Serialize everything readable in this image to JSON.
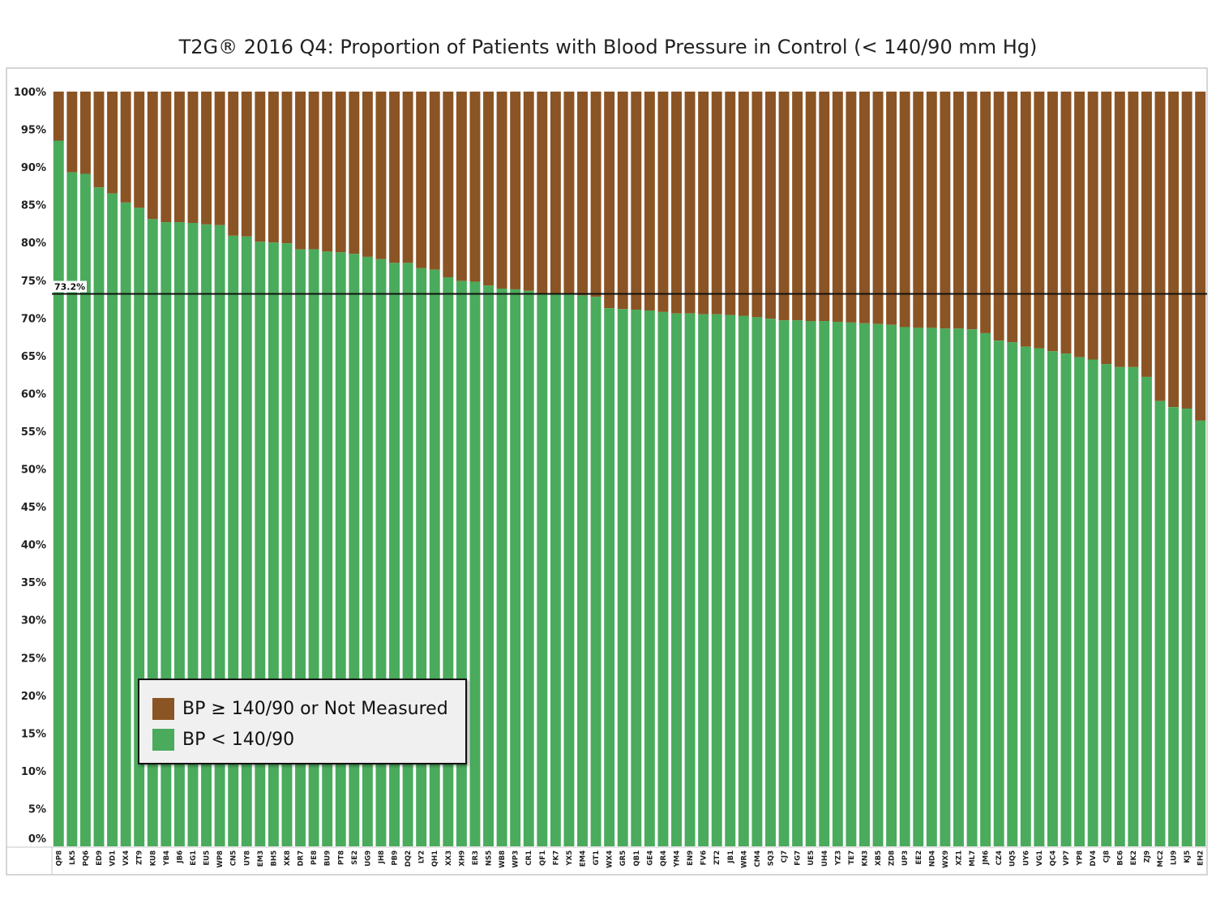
{
  "chart_data": {
    "type": "bar",
    "stacked": true,
    "title": "T2G® 2016 Q4: Proportion of Patients with Blood Pressure in Control (< 140/90 mm Hg)",
    "ylim": [
      0,
      100
    ],
    "y_ticks": [
      "0%",
      "5%",
      "10%",
      "15%",
      "20%",
      "25%",
      "30%",
      "35%",
      "40%",
      "45%",
      "50%",
      "55%",
      "60%",
      "65%",
      "70%",
      "75%",
      "80%",
      "85%",
      "90%",
      "95%",
      "100%"
    ],
    "grid": false,
    "reference_line": {
      "value": 73.2,
      "label": "73.2%"
    },
    "categories": [
      "QP8",
      "LK5",
      "PQ6",
      "ED9",
      "VD1",
      "VX4",
      "ZT9",
      "KU8",
      "YB4",
      "JB6",
      "EG1",
      "EU5",
      "WP8",
      "CN5",
      "UY8",
      "EM3",
      "BH5",
      "XK8",
      "DR7",
      "PE8",
      "BU9",
      "PT8",
      "SE2",
      "UG9",
      "JH8",
      "PB9",
      "DQ2",
      "LY2",
      "QH1",
      "XX3",
      "XH9",
      "ER3",
      "NS5",
      "WB8",
      "WP3",
      "CR1",
      "QF1",
      "FK7",
      "YX5",
      "EM4",
      "GT1",
      "WX4",
      "GR5",
      "QB1",
      "GE4",
      "QR4",
      "YM4",
      "EN9",
      "FV6",
      "ZT2",
      "JB1",
      "WR4",
      "CM4",
      "SQ3",
      "CJ7",
      "FG7",
      "UE5",
      "UH4",
      "YZ3",
      "TE7",
      "KN3",
      "XB5",
      "ZD8",
      "UP3",
      "EE2",
      "ND4",
      "WX9",
      "XZ1",
      "ML7",
      "JM6",
      "CZ4",
      "UQ5",
      "UY6",
      "VG1",
      "QC4",
      "VP7",
      "YP8",
      "DV4",
      "CJ8",
      "BC6",
      "EK2",
      "ZJ9",
      "MC2",
      "LU9",
      "KJ5",
      "EH2"
    ],
    "series": [
      {
        "name": "BP < 140/90",
        "color": "#4aab5c",
        "values": [
          93.5,
          89.3,
          89.1,
          87.3,
          86.5,
          85.3,
          84.6,
          83.1,
          82.7,
          82.7,
          82.6,
          82.4,
          82.3,
          80.9,
          80.8,
          80.1,
          80.0,
          79.9,
          79.1,
          79.1,
          78.8,
          78.7,
          78.5,
          78.1,
          77.8,
          77.3,
          77.3,
          76.6,
          76.4,
          75.4,
          74.9,
          74.8,
          74.3,
          73.9,
          73.8,
          73.6,
          73.3,
          73.2,
          73.1,
          73.0,
          72.8,
          71.3,
          71.2,
          71.1,
          71.0,
          70.8,
          70.6,
          70.6,
          70.5,
          70.5,
          70.4,
          70.3,
          70.1,
          69.9,
          69.7,
          69.7,
          69.6,
          69.6,
          69.5,
          69.4,
          69.3,
          69.2,
          69.1,
          68.8,
          68.7,
          68.7,
          68.6,
          68.6,
          68.5,
          68.0,
          67.0,
          66.8,
          66.2,
          66.0,
          65.6,
          65.3,
          64.8,
          64.5,
          63.9,
          63.5,
          63.5,
          62.2,
          59.0,
          58.2,
          58.0,
          56.4
        ]
      },
      {
        "name": "BP ≥ 140/90 or Not Measured",
        "color": "#8b5424",
        "values": [
          6.5,
          10.7,
          10.9,
          12.7,
          13.5,
          14.7,
          15.4,
          16.9,
          17.3,
          17.3,
          17.4,
          17.6,
          17.7,
          19.1,
          19.2,
          19.9,
          20.0,
          20.1,
          20.9,
          20.9,
          21.2,
          21.3,
          21.5,
          21.9,
          22.2,
          22.7,
          22.7,
          23.4,
          23.6,
          24.6,
          25.1,
          25.2,
          25.7,
          26.1,
          26.2,
          26.4,
          26.7,
          26.8,
          26.9,
          27.0,
          27.2,
          28.7,
          28.8,
          28.9,
          29.0,
          29.2,
          29.4,
          29.4,
          29.5,
          29.5,
          29.6,
          29.7,
          29.9,
          30.1,
          30.3,
          30.3,
          30.4,
          30.4,
          30.5,
          30.6,
          30.7,
          30.8,
          30.9,
          31.2,
          31.3,
          31.3,
          31.4,
          31.4,
          31.5,
          32.0,
          33.0,
          33.2,
          33.8,
          34.0,
          34.4,
          34.7,
          35.2,
          35.5,
          36.1,
          36.5,
          36.5,
          37.8,
          41.0,
          41.8,
          42.0,
          43.6
        ]
      }
    ],
    "legend": {
      "placement": "lower-left",
      "entries": [
        {
          "label": "BP ≥ 140/90 or Not Measured",
          "color": "#8b5424"
        },
        {
          "label": "BP < 140/90",
          "color": "#4aab5c"
        }
      ]
    }
  }
}
